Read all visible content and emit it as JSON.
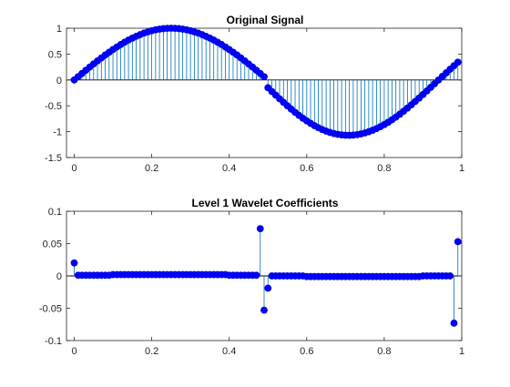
{
  "colors": {
    "marker": "#0000ff",
    "marker_edge": "#0000cc",
    "stem": "#0072bd",
    "baseline": "#000000",
    "axes": "#262626",
    "background": "#ffffff"
  },
  "chart_data": [
    {
      "type": "stem",
      "title": "Original Signal",
      "xlabel": "",
      "ylabel": "",
      "xlim": [
        -0.02,
        1.0
      ],
      "ylim": [
        -1.5,
        1.0
      ],
      "xticks": [
        0,
        0.2,
        0.4,
        0.6,
        0.8,
        1
      ],
      "xtick_labels": [
        "0",
        "0.2",
        "0.4",
        "0.6",
        "0.8",
        "1"
      ],
      "yticks": [
        -1.5,
        -1,
        -0.5,
        0,
        0.5,
        1
      ],
      "ytick_labels": [
        "-1.5",
        "-1",
        "-0.5",
        "0",
        "0.5",
        "1"
      ],
      "grid": false,
      "series": [
        {
          "x": [
            0,
            0.01,
            0.02,
            0.03,
            0.04,
            0.05,
            0.06,
            0.07,
            0.08,
            0.09,
            0.1,
            0.11,
            0.12,
            0.13,
            0.14,
            0.15,
            0.16,
            0.17,
            0.18,
            0.19,
            0.2,
            0.21,
            0.22,
            0.23,
            0.24,
            0.25,
            0.26,
            0.27,
            0.28,
            0.29,
            0.3,
            0.31,
            0.32,
            0.33,
            0.34,
            0.35,
            0.36,
            0.37,
            0.38,
            0.39,
            0.4,
            0.41,
            0.42,
            0.43,
            0.44,
            0.45,
            0.46,
            0.47,
            0.48,
            0.49,
            0.5,
            0.51,
            0.52,
            0.53,
            0.54,
            0.55,
            0.56,
            0.57,
            0.58,
            0.59,
            0.6,
            0.61,
            0.62,
            0.63,
            0.64,
            0.65,
            0.66,
            0.67,
            0.68,
            0.69,
            0.7,
            0.71,
            0.72,
            0.73,
            0.74,
            0.75,
            0.76,
            0.77,
            0.78,
            0.79,
            0.8,
            0.81,
            0.82,
            0.83,
            0.84,
            0.85,
            0.86,
            0.87,
            0.88,
            0.89,
            0.9,
            0.91,
            0.92,
            0.93,
            0.94,
            0.95,
            0.96,
            0.97,
            0.98,
            0.99
          ],
          "y": [
            0.0,
            0.063,
            0.125,
            0.187,
            0.249,
            0.309,
            0.368,
            0.426,
            0.482,
            0.536,
            0.588,
            0.637,
            0.685,
            0.729,
            0.771,
            0.809,
            0.844,
            0.876,
            0.905,
            0.93,
            0.951,
            0.969,
            0.982,
            0.992,
            0.998,
            1.0,
            0.998,
            0.992,
            0.982,
            0.969,
            0.951,
            0.93,
            0.905,
            0.876,
            0.844,
            0.809,
            0.771,
            0.729,
            0.685,
            0.637,
            0.588,
            0.536,
            0.482,
            0.426,
            0.368,
            0.309,
            0.249,
            0.187,
            0.125,
            0.063,
            -0.15,
            -0.223,
            -0.294,
            -0.364,
            -0.433,
            -0.5,
            -0.564,
            -0.626,
            -0.685,
            -0.74,
            -0.792,
            -0.84,
            -0.884,
            -0.924,
            -0.959,
            -0.99,
            -1.015,
            -1.036,
            -1.052,
            -1.063,
            -1.069,
            -1.07,
            -1.066,
            -1.057,
            -1.043,
            -1.025,
            -1.001,
            -0.973,
            -0.941,
            -0.904,
            -0.863,
            -0.819,
            -0.77,
            -0.718,
            -0.663,
            -0.605,
            -0.544,
            -0.481,
            -0.416,
            -0.35,
            -0.282,
            -0.213,
            -0.143,
            -0.073,
            -0.002,
            0.068,
            0.138,
            0.207,
            0.275,
            0.343
          ]
        }
      ]
    },
    {
      "type": "stem",
      "title": "Level 1 Wavelet Coefficients",
      "xlabel": "",
      "ylabel": "",
      "xlim": [
        -0.02,
        1.0
      ],
      "ylim": [
        -0.1,
        0.1
      ],
      "xticks": [
        0,
        0.2,
        0.4,
        0.6,
        0.8,
        1
      ],
      "xtick_labels": [
        "0",
        "0.2",
        "0.4",
        "0.6",
        "0.8",
        "1"
      ],
      "yticks": [
        -0.1,
        -0.05,
        0,
        0.05,
        0.1
      ],
      "ytick_labels": [
        "-0.1",
        "-0.05",
        "0",
        "0.05",
        "0.1"
      ],
      "grid": false,
      "series": [
        {
          "x": [
            0,
            0.01,
            0.02,
            0.03,
            0.04,
            0.05,
            0.06,
            0.07,
            0.08,
            0.09,
            0.1,
            0.11,
            0.12,
            0.13,
            0.14,
            0.15,
            0.16,
            0.17,
            0.18,
            0.19,
            0.2,
            0.21,
            0.22,
            0.23,
            0.24,
            0.25,
            0.26,
            0.27,
            0.28,
            0.29,
            0.3,
            0.31,
            0.32,
            0.33,
            0.34,
            0.35,
            0.36,
            0.37,
            0.38,
            0.39,
            0.4,
            0.41,
            0.42,
            0.43,
            0.44,
            0.45,
            0.46,
            0.47,
            0.48,
            0.49,
            0.5,
            0.51,
            0.52,
            0.53,
            0.54,
            0.55,
            0.56,
            0.57,
            0.58,
            0.59,
            0.6,
            0.61,
            0.62,
            0.63,
            0.64,
            0.65,
            0.66,
            0.67,
            0.68,
            0.69,
            0.7,
            0.71,
            0.72,
            0.73,
            0.74,
            0.75,
            0.76,
            0.77,
            0.78,
            0.79,
            0.8,
            0.81,
            0.82,
            0.83,
            0.84,
            0.85,
            0.86,
            0.87,
            0.88,
            0.89,
            0.9,
            0.91,
            0.92,
            0.93,
            0.94,
            0.95,
            0.96,
            0.97,
            0.98,
            0.99
          ],
          "y": [
            0.02,
            0.001,
            0.001,
            0.001,
            0.001,
            0.001,
            0.001,
            0.001,
            0.001,
            0.001,
            0.002,
            0.002,
            0.002,
            0.002,
            0.002,
            0.002,
            0.002,
            0.002,
            0.002,
            0.002,
            0.002,
            0.002,
            0.002,
            0.002,
            0.002,
            0.002,
            0.002,
            0.002,
            0.002,
            0.002,
            0.002,
            0.002,
            0.002,
            0.002,
            0.002,
            0.002,
            0.002,
            0.002,
            0.002,
            0.002,
            0.001,
            0.001,
            0.001,
            0.001,
            0.001,
            0.001,
            0.001,
            0.001,
            0.073,
            -0.053,
            -0.019,
            0.0,
            0.0,
            0.0,
            0.0,
            0.0,
            0.0,
            0.0,
            0.0,
            0.0,
            -0.001,
            -0.001,
            -0.001,
            -0.001,
            -0.001,
            -0.001,
            -0.001,
            -0.001,
            -0.001,
            -0.001,
            -0.001,
            -0.001,
            -0.001,
            -0.001,
            -0.001,
            -0.001,
            -0.001,
            -0.001,
            -0.001,
            -0.001,
            -0.001,
            -0.001,
            -0.001,
            -0.001,
            -0.001,
            -0.001,
            -0.001,
            -0.001,
            -0.001,
            -0.001,
            0.0,
            0.0,
            0.0,
            0.0,
            0.0,
            0.0,
            0.0,
            0.0,
            -0.073,
            0.053
          ]
        }
      ]
    }
  ]
}
